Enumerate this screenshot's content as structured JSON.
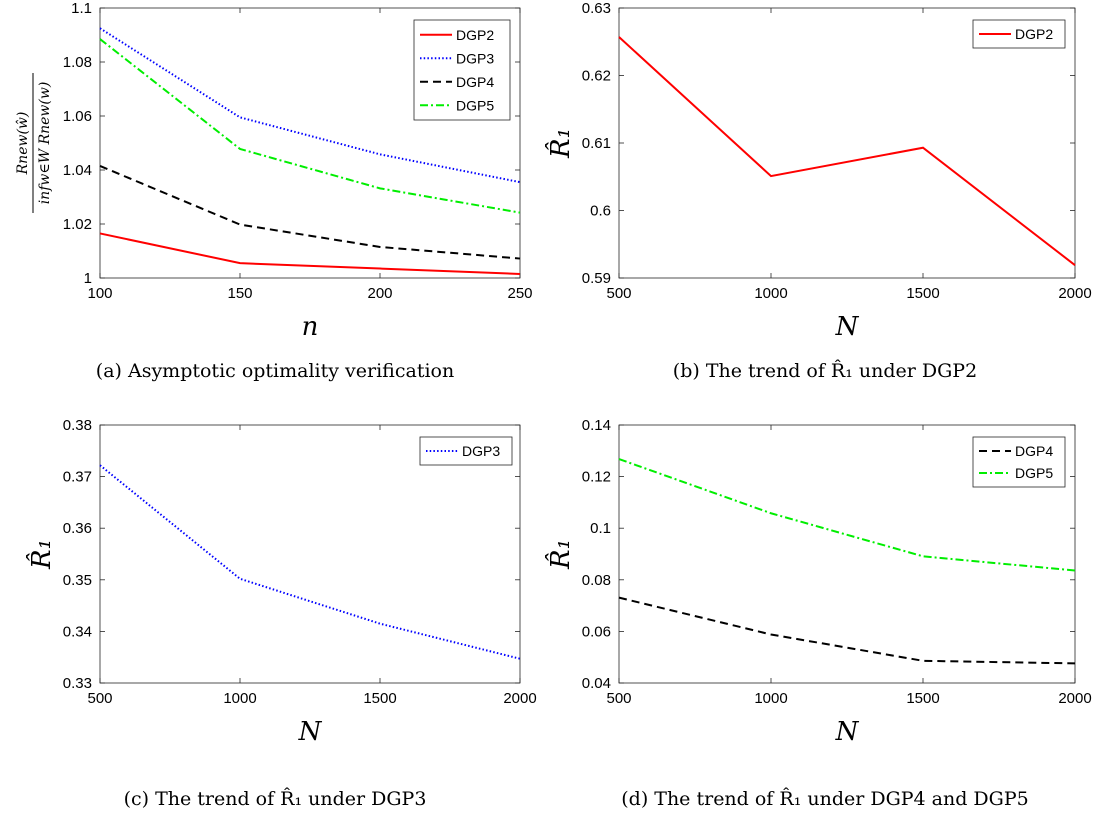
{
  "chart_data": [
    {
      "type": "line",
      "caption": "(a) Asymptotic optimality verification",
      "x": [
        100,
        150,
        200,
        250
      ],
      "xlabel": "n",
      "ylabel": "R_new(ŵ) / inf_{w∈W} R_new(w)",
      "ylabel_num": "Rnew(ŵ)",
      "ylabel_den": "infw∈W Rnew(w)",
      "xlim": [
        100,
        250
      ],
      "ylim": [
        1,
        1.1
      ],
      "xticks": [
        100,
        150,
        200,
        250
      ],
      "xtick_labels": [
        "100",
        "150",
        "200",
        "250"
      ],
      "yticks": [
        1,
        1.02,
        1.04,
        1.06,
        1.08,
        1.1
      ],
      "ytick_labels": [
        "1",
        "1.02",
        "1.04",
        "1.06",
        "1.08",
        "1.1"
      ],
      "grid": false,
      "legend": "top-right",
      "series": [
        {
          "name": "DGP2",
          "values": [
            1.0165,
            1.0055,
            1.0035,
            1.0015
          ],
          "color": "#ff0000",
          "style": "solid"
        },
        {
          "name": "DGP3",
          "values": [
            1.0925,
            1.0595,
            1.0458,
            1.0355
          ],
          "color": "#0000ff",
          "style": "dotted"
        },
        {
          "name": "DGP4",
          "values": [
            1.0415,
            1.0198,
            1.0115,
            1.0072
          ],
          "color": "#000000",
          "style": "dashed"
        },
        {
          "name": "DGP5",
          "values": [
            1.0885,
            1.0478,
            1.0332,
            1.0242
          ],
          "color": "#00ee00",
          "style": "dashdot"
        }
      ]
    },
    {
      "type": "line",
      "caption": "(b) The trend of R̂₁ under DGP2",
      "x": [
        500,
        1000,
        1500,
        2000
      ],
      "xlabel": "N",
      "ylabel": "R̂₁",
      "xlim": [
        500,
        2000
      ],
      "ylim": [
        0.59,
        0.63
      ],
      "xticks": [
        500,
        1000,
        1500,
        2000
      ],
      "xtick_labels": [
        "500",
        "1000",
        "1500",
        "2000"
      ],
      "yticks": [
        0.59,
        0.6,
        0.61,
        0.62,
        0.63
      ],
      "ytick_labels": [
        "0.59",
        "0.6",
        "0.61",
        "0.62",
        "0.63"
      ],
      "grid": false,
      "legend": "top-right",
      "series": [
        {
          "name": "DGP2",
          "values": [
            0.6257,
            0.6051,
            0.6093,
            0.5919
          ],
          "color": "#ff0000",
          "style": "solid"
        }
      ]
    },
    {
      "type": "line",
      "caption": "(c) The trend of R̂₁ under DGP3",
      "x": [
        500,
        1000,
        1500,
        2000
      ],
      "xlabel": "N",
      "ylabel": "R̂₁",
      "xlim": [
        500,
        2000
      ],
      "ylim": [
        0.33,
        0.38
      ],
      "xticks": [
        500,
        1000,
        1500,
        2000
      ],
      "xtick_labels": [
        "500",
        "1000",
        "1500",
        "2000"
      ],
      "yticks": [
        0.33,
        0.34,
        0.35,
        0.36,
        0.37,
        0.38
      ],
      "ytick_labels": [
        "0.33",
        "0.34",
        "0.35",
        "0.36",
        "0.37",
        "0.38"
      ],
      "grid": false,
      "legend": "top-right",
      "series": [
        {
          "name": "DGP3",
          "values": [
            0.3722,
            0.3502,
            0.3415,
            0.3347
          ],
          "color": "#0000ff",
          "style": "dotted"
        }
      ]
    },
    {
      "type": "line",
      "caption": "(d) The trend of R̂₁ under DGP4 and DGP5",
      "x": [
        500,
        1000,
        1500,
        2000
      ],
      "xlabel": "N",
      "ylabel": "R̂₁",
      "xlim": [
        500,
        2000
      ],
      "ylim": [
        0.04,
        0.14
      ],
      "xticks": [
        500,
        1000,
        1500,
        2000
      ],
      "xtick_labels": [
        "500",
        "1000",
        "1500",
        "2000"
      ],
      "yticks": [
        0.04,
        0.06,
        0.08,
        0.1,
        0.12,
        0.14
      ],
      "ytick_labels": [
        "0.04",
        "0.06",
        "0.08",
        "0.1",
        "0.12",
        "0.14"
      ],
      "grid": false,
      "legend": "top-right",
      "series": [
        {
          "name": "DGP4",
          "values": [
            0.0731,
            0.0588,
            0.0486,
            0.0476
          ],
          "color": "#000000",
          "style": "dashed"
        },
        {
          "name": "DGP5",
          "values": [
            0.1268,
            0.1058,
            0.0891,
            0.0836
          ],
          "color": "#00ee00",
          "style": "dashdot"
        }
      ]
    }
  ]
}
